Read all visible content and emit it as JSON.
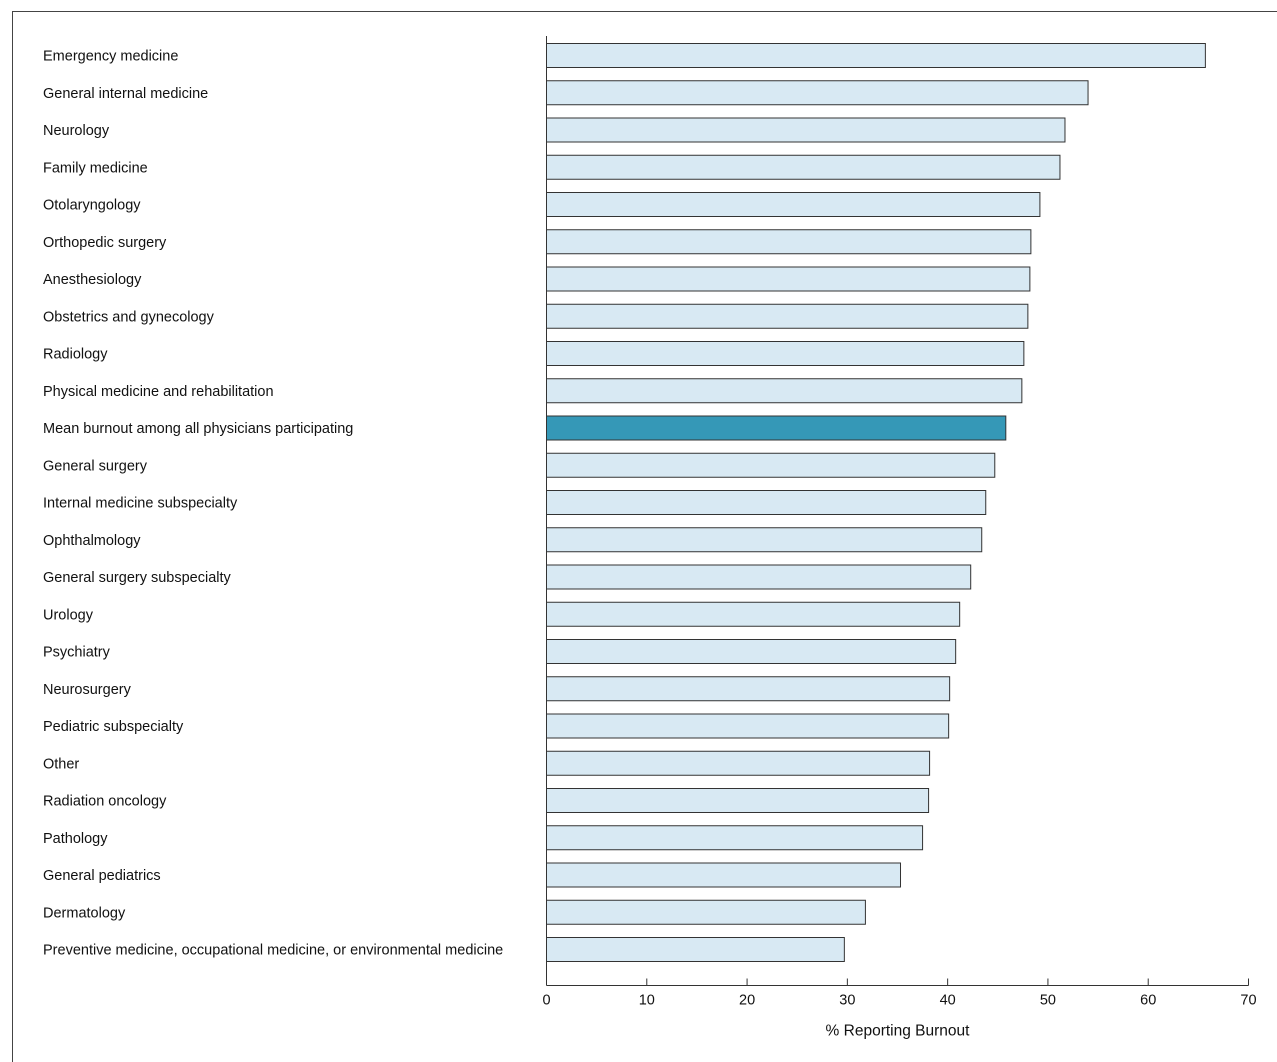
{
  "chart_data": {
    "type": "bar",
    "orientation": "horizontal",
    "title": "",
    "xlabel": "% Reporting Burnout",
    "ylabel": "",
    "xlim": [
      0,
      70
    ],
    "xticks": [
      "0",
      "10",
      "20",
      "30",
      "40",
      "50",
      "60",
      "70"
    ],
    "grid": false,
    "colors": {
      "bar": "#d8e9f3",
      "highlight": "#3598b7",
      "outline": "#333333"
    },
    "highlight_category": "Mean burnout among all physicians participating",
    "categories": [
      "Emergency medicine",
      "General internal medicine",
      "Neurology",
      "Family medicine",
      "Otolaryngology",
      "Orthopedic surgery",
      "Anesthesiology",
      "Obstetrics and gynecology",
      "Radiology",
      "Physical medicine and rehabilitation",
      "Mean burnout among all physicians participating",
      "General surgery",
      "Internal medicine subspecialty",
      "Ophthalmology",
      "General surgery subspecialty",
      "Urology",
      "Psychiatry",
      "Neurosurgery",
      "Pediatric subspecialty",
      "Other",
      "Radiation oncology",
      "Pathology",
      "General pediatrics",
      "Dermatology",
      "Preventive medicine, occupational medicine, or environmental medicine"
    ],
    "values": [
      65.7,
      54.0,
      51.7,
      51.2,
      49.2,
      48.3,
      48.2,
      48.0,
      47.6,
      47.4,
      45.8,
      44.7,
      43.8,
      43.4,
      42.3,
      41.2,
      40.8,
      40.2,
      40.1,
      38.2,
      38.1,
      37.5,
      35.3,
      31.8,
      29.7
    ]
  }
}
